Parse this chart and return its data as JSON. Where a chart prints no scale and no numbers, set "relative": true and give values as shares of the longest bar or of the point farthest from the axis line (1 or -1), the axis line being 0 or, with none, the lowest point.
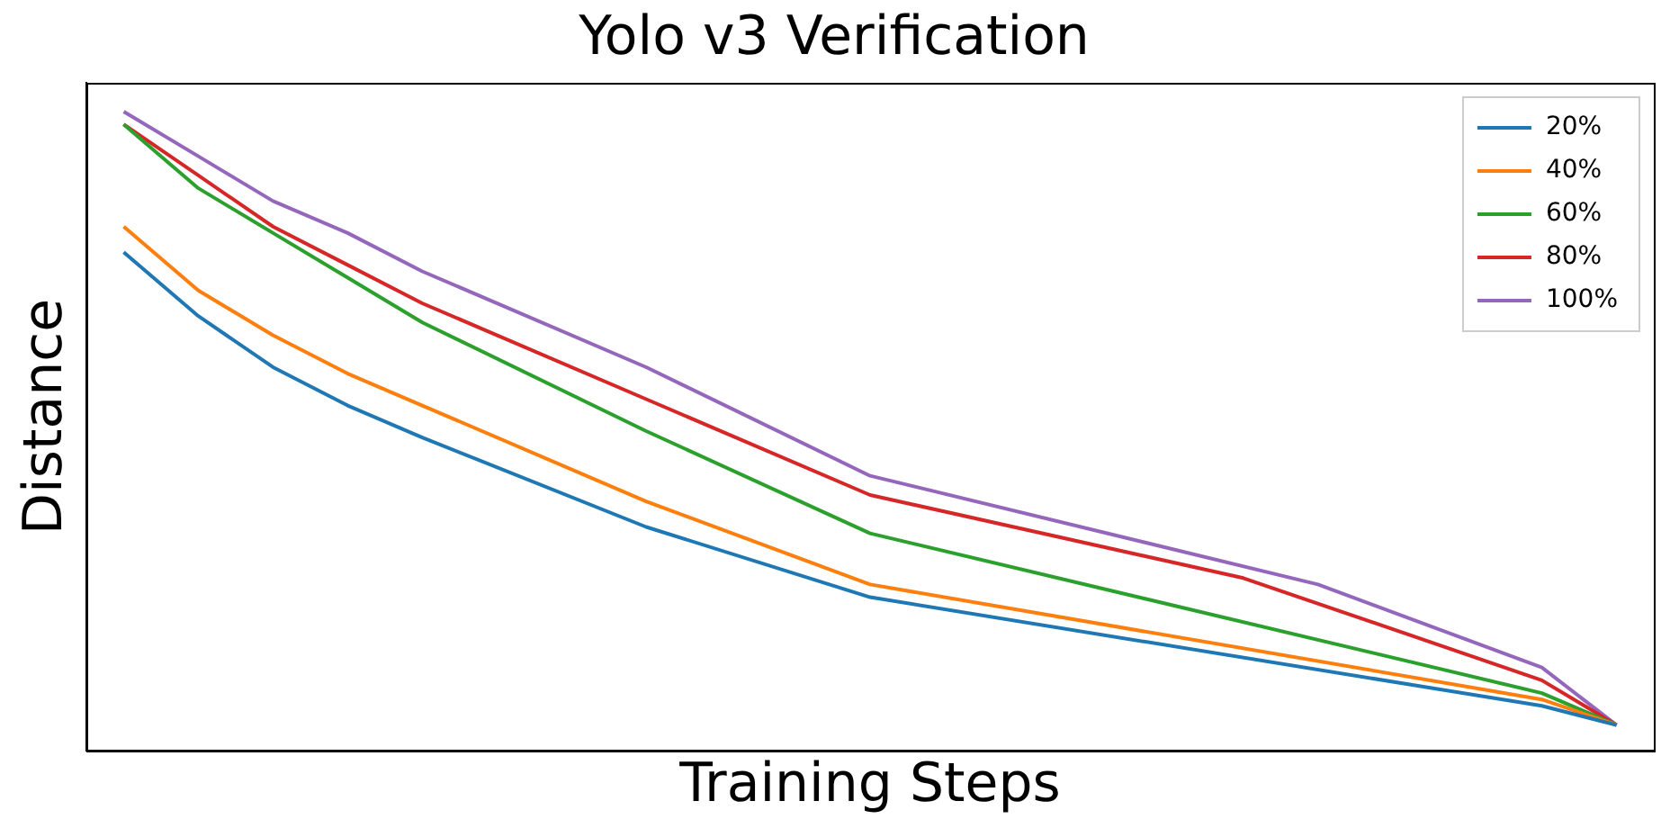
{
  "chart_data": {
    "type": "line",
    "title": "Yolo v3 Verification",
    "xlabel": "Training Steps",
    "ylabel": "Distance",
    "relative": true,
    "legend": "top right",
    "grid": false,
    "marker": "none",
    "categories": [
      null,
      null,
      null,
      null,
      null,
      null,
      null,
      null,
      null,
      null,
      null,
      null,
      null,
      null,
      null,
      null,
      null,
      null,
      null,
      null,
      null
    ],
    "series": [
      {
        "name": "20%",
        "color": "#1f77b4",
        "values": [
          0.78,
          0.68,
          0.6,
          0.54,
          0.49,
          null,
          null,
          0.35,
          null,
          null,
          0.24,
          null,
          null,
          null,
          null,
          null,
          null,
          null,
          null,
          0.07,
          0.04
        ]
      },
      {
        "name": "40%",
        "color": "#ff7f0e",
        "values": [
          0.82,
          0.72,
          0.65,
          0.59,
          0.54,
          null,
          null,
          0.39,
          null,
          null,
          0.26,
          null,
          null,
          null,
          null,
          null,
          null,
          null,
          null,
          0.08,
          0.04
        ]
      },
      {
        "name": "60%",
        "color": "#2ca02c",
        "values": [
          0.98,
          0.88,
          0.81,
          0.74,
          0.67,
          null,
          null,
          0.5,
          null,
          null,
          0.34,
          null,
          null,
          null,
          null,
          null,
          null,
          null,
          null,
          0.09,
          0.04
        ]
      },
      {
        "name": "80%",
        "color": "#d62728",
        "values": [
          0.98,
          0.9,
          0.82,
          0.76,
          0.7,
          null,
          null,
          0.55,
          null,
          null,
          0.4,
          null,
          null,
          null,
          null,
          0.27,
          null,
          null,
          null,
          0.11,
          0.04
        ]
      },
      {
        "name": "100%",
        "color": "#9467bd",
        "values": [
          1,
          0.93,
          0.86,
          0.81,
          0.75,
          null,
          null,
          0.6,
          null,
          null,
          0.43,
          null,
          null,
          null,
          null,
          null,
          0.26,
          null,
          null,
          0.13,
          0.04
        ]
      }
    ]
  }
}
